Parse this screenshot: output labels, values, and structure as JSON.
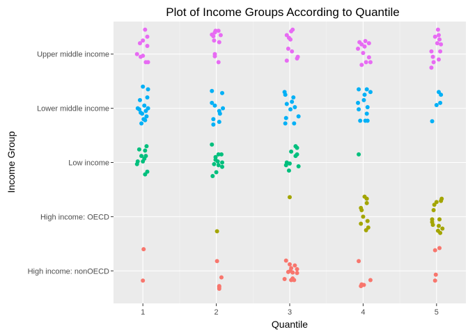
{
  "chart_data": {
    "type": "scatter",
    "title": "Plot of Income Groups According to Quantile",
    "xlabel": "Quantile",
    "ylabel": "Income Group",
    "x_ticks": [
      "1",
      "2",
      "3",
      "4",
      "5"
    ],
    "y_categories": [
      "High income: nonOECD",
      "High income: OECD",
      "Low income",
      "Lower middle income",
      "Upper middle income"
    ],
    "xlim": [
      0.6,
      5.4
    ],
    "ylim": [
      0.4,
      5.6
    ],
    "grid": true,
    "legend": "none",
    "series": [
      {
        "color": "#F8766D",
        "points": [
          {
            "x": 1.01,
            "y": 1.4
          },
          {
            "x": 1.0,
            "y": 0.82
          },
          {
            "x": 2.01,
            "y": 1.18
          },
          {
            "x": 2.07,
            "y": 0.88
          },
          {
            "x": 2.04,
            "y": 0.72
          },
          {
            "x": 2.04,
            "y": 0.67
          },
          {
            "x": 2.04,
            "y": 0.7
          },
          {
            "x": 2.95,
            "y": 1.19
          },
          {
            "x": 3.0,
            "y": 1.12
          },
          {
            "x": 3.07,
            "y": 1.1
          },
          {
            "x": 3.02,
            "y": 1.05
          },
          {
            "x": 3.1,
            "y": 1.03
          },
          {
            "x": 3.01,
            "y": 1.0
          },
          {
            "x": 2.98,
            "y": 0.98
          },
          {
            "x": 3.04,
            "y": 0.97
          },
          {
            "x": 3.1,
            "y": 0.96
          },
          {
            "x": 2.93,
            "y": 0.85
          },
          {
            "x": 3.02,
            "y": 0.83
          },
          {
            "x": 3.04,
            "y": 0.86
          },
          {
            "x": 3.06,
            "y": 0.83
          },
          {
            "x": 3.94,
            "y": 1.18
          },
          {
            "x": 4.1,
            "y": 0.83
          },
          {
            "x": 3.98,
            "y": 0.75
          },
          {
            "x": 3.97,
            "y": 0.72
          },
          {
            "x": 4.01,
            "y": 0.74
          },
          {
            "x": 5.04,
            "y": 1.42
          },
          {
            "x": 4.98,
            "y": 1.38
          },
          {
            "x": 4.99,
            "y": 0.93
          },
          {
            "x": 4.98,
            "y": 0.82
          }
        ]
      },
      {
        "color": "#A3A500",
        "points": [
          {
            "x": 2.01,
            "y": 1.73
          },
          {
            "x": 3.0,
            "y": 2.36
          },
          {
            "x": 4.02,
            "y": 2.37
          },
          {
            "x": 4.05,
            "y": 2.33
          },
          {
            "x": 4.05,
            "y": 2.25
          },
          {
            "x": 3.97,
            "y": 2.16
          },
          {
            "x": 3.98,
            "y": 2.12
          },
          {
            "x": 4.0,
            "y": 2.0
          },
          {
            "x": 4.06,
            "y": 1.92
          },
          {
            "x": 3.97,
            "y": 1.87
          },
          {
            "x": 4.07,
            "y": 1.8
          },
          {
            "x": 4.04,
            "y": 1.75
          },
          {
            "x": 5.07,
            "y": 2.33
          },
          {
            "x": 5.06,
            "y": 2.29
          },
          {
            "x": 5.0,
            "y": 2.27
          },
          {
            "x": 4.97,
            "y": 2.22
          },
          {
            "x": 4.96,
            "y": 2.12
          },
          {
            "x": 4.94,
            "y": 1.95
          },
          {
            "x": 5.04,
            "y": 1.95
          },
          {
            "x": 4.94,
            "y": 1.9
          },
          {
            "x": 4.95,
            "y": 1.85
          },
          {
            "x": 5.03,
            "y": 1.83
          },
          {
            "x": 5.08,
            "y": 1.78
          },
          {
            "x": 5.02,
            "y": 1.74
          },
          {
            "x": 5.05,
            "y": 1.7
          }
        ]
      },
      {
        "color": "#00BF7D",
        "points": [
          {
            "x": 1.05,
            "y": 3.3
          },
          {
            "x": 0.95,
            "y": 3.24
          },
          {
            "x": 1.03,
            "y": 3.22
          },
          {
            "x": 0.98,
            "y": 3.12
          },
          {
            "x": 1.04,
            "y": 3.12
          },
          {
            "x": 1.02,
            "y": 3.07
          },
          {
            "x": 0.93,
            "y": 3.02
          },
          {
            "x": 1.0,
            "y": 3.02
          },
          {
            "x": 0.92,
            "y": 2.97
          },
          {
            "x": 1.06,
            "y": 2.83
          },
          {
            "x": 1.03,
            "y": 2.78
          },
          {
            "x": 1.94,
            "y": 3.33
          },
          {
            "x": 2.03,
            "y": 3.15
          },
          {
            "x": 2.07,
            "y": 3.15
          },
          {
            "x": 1.99,
            "y": 3.1
          },
          {
            "x": 1.99,
            "y": 3.05
          },
          {
            "x": 2.02,
            "y": 3.02
          },
          {
            "x": 2.08,
            "y": 3.0
          },
          {
            "x": 1.97,
            "y": 2.97
          },
          {
            "x": 2.03,
            "y": 2.95
          },
          {
            "x": 2.08,
            "y": 2.92
          },
          {
            "x": 2.0,
            "y": 2.82
          },
          {
            "x": 1.95,
            "y": 2.75
          },
          {
            "x": 3.08,
            "y": 3.3
          },
          {
            "x": 3.1,
            "y": 3.27
          },
          {
            "x": 3.02,
            "y": 3.2
          },
          {
            "x": 3.1,
            "y": 3.15
          },
          {
            "x": 3.08,
            "y": 3.12
          },
          {
            "x": 2.96,
            "y": 3.0
          },
          {
            "x": 3.0,
            "y": 2.98
          },
          {
            "x": 2.95,
            "y": 2.95
          },
          {
            "x": 3.12,
            "y": 2.93
          },
          {
            "x": 2.99,
            "y": 2.85
          },
          {
            "x": 3.94,
            "y": 3.15
          }
        ]
      },
      {
        "color": "#00B0F6",
        "points": [
          {
            "x": 1.0,
            "y": 4.4
          },
          {
            "x": 1.07,
            "y": 4.35
          },
          {
            "x": 1.06,
            "y": 4.2
          },
          {
            "x": 0.96,
            "y": 4.15
          },
          {
            "x": 1.02,
            "y": 4.05
          },
          {
            "x": 0.93,
            "y": 4.0
          },
          {
            "x": 0.95,
            "y": 3.98
          },
          {
            "x": 1.07,
            "y": 4.0
          },
          {
            "x": 1.04,
            "y": 3.95
          },
          {
            "x": 0.97,
            "y": 3.92
          },
          {
            "x": 0.99,
            "y": 3.9
          },
          {
            "x": 1.05,
            "y": 3.85
          },
          {
            "x": 1.01,
            "y": 3.8
          },
          {
            "x": 1.03,
            "y": 3.78
          },
          {
            "x": 0.98,
            "y": 3.72
          },
          {
            "x": 1.94,
            "y": 4.32
          },
          {
            "x": 2.08,
            "y": 4.28
          },
          {
            "x": 1.94,
            "y": 4.1
          },
          {
            "x": 1.98,
            "y": 4.05
          },
          {
            "x": 2.09,
            "y": 4.0
          },
          {
            "x": 2.04,
            "y": 3.95
          },
          {
            "x": 2.05,
            "y": 3.9
          },
          {
            "x": 1.96,
            "y": 3.8
          },
          {
            "x": 2.04,
            "y": 3.75
          },
          {
            "x": 1.96,
            "y": 3.7
          },
          {
            "x": 2.93,
            "y": 4.3
          },
          {
            "x": 2.94,
            "y": 4.25
          },
          {
            "x": 3.05,
            "y": 4.2
          },
          {
            "x": 3.03,
            "y": 4.12
          },
          {
            "x": 2.96,
            "y": 4.08
          },
          {
            "x": 3.07,
            "y": 4.02
          },
          {
            "x": 3.01,
            "y": 3.98
          },
          {
            "x": 3.12,
            "y": 3.85
          },
          {
            "x": 2.95,
            "y": 3.82
          },
          {
            "x": 2.94,
            "y": 3.72
          },
          {
            "x": 3.06,
            "y": 3.72
          },
          {
            "x": 3.94,
            "y": 4.35
          },
          {
            "x": 4.05,
            "y": 4.35
          },
          {
            "x": 4.1,
            "y": 4.3
          },
          {
            "x": 4.02,
            "y": 4.25
          },
          {
            "x": 4.01,
            "y": 4.15
          },
          {
            "x": 3.93,
            "y": 4.1
          },
          {
            "x": 4.06,
            "y": 4.02
          },
          {
            "x": 3.94,
            "y": 3.98
          },
          {
            "x": 4.05,
            "y": 3.9
          },
          {
            "x": 3.96,
            "y": 3.77
          },
          {
            "x": 4.03,
            "y": 3.77
          },
          {
            "x": 4.06,
            "y": 3.77
          },
          {
            "x": 5.03,
            "y": 4.3
          },
          {
            "x": 5.06,
            "y": 4.25
          },
          {
            "x": 5.05,
            "y": 4.1
          },
          {
            "x": 5.0,
            "y": 4.06
          },
          {
            "x": 4.94,
            "y": 3.76
          }
        ]
      },
      {
        "color": "#E76BF3",
        "points": [
          {
            "x": 1.03,
            "y": 5.45
          },
          {
            "x": 1.06,
            "y": 5.32
          },
          {
            "x": 1.0,
            "y": 5.25
          },
          {
            "x": 0.96,
            "y": 5.2
          },
          {
            "x": 1.06,
            "y": 5.15
          },
          {
            "x": 0.92,
            "y": 5.0
          },
          {
            "x": 1.0,
            "y": 4.97
          },
          {
            "x": 0.97,
            "y": 4.95
          },
          {
            "x": 1.04,
            "y": 4.85
          },
          {
            "x": 1.07,
            "y": 4.85
          },
          {
            "x": 1.99,
            "y": 5.43
          },
          {
            "x": 2.03,
            "y": 5.43
          },
          {
            "x": 1.98,
            "y": 5.4
          },
          {
            "x": 2.06,
            "y": 5.35
          },
          {
            "x": 1.94,
            "y": 5.36
          },
          {
            "x": 1.96,
            "y": 5.33
          },
          {
            "x": 1.97,
            "y": 5.25
          },
          {
            "x": 2.04,
            "y": 5.22
          },
          {
            "x": 1.98,
            "y": 5.0
          },
          {
            "x": 1.98,
            "y": 4.96
          },
          {
            "x": 2.03,
            "y": 4.85
          },
          {
            "x": 3.04,
            "y": 5.45
          },
          {
            "x": 3.02,
            "y": 5.42
          },
          {
            "x": 2.96,
            "y": 5.35
          },
          {
            "x": 2.99,
            "y": 5.3
          },
          {
            "x": 3.01,
            "y": 5.27
          },
          {
            "x": 2.98,
            "y": 5.1
          },
          {
            "x": 3.03,
            "y": 5.05
          },
          {
            "x": 3.11,
            "y": 4.95
          },
          {
            "x": 3.1,
            "y": 4.92
          },
          {
            "x": 2.96,
            "y": 4.88
          },
          {
            "x": 3.95,
            "y": 5.22
          },
          {
            "x": 4.03,
            "y": 5.24
          },
          {
            "x": 4.08,
            "y": 5.2
          },
          {
            "x": 3.98,
            "y": 5.18
          },
          {
            "x": 4.02,
            "y": 5.14
          },
          {
            "x": 3.93,
            "y": 5.1
          },
          {
            "x": 4.0,
            "y": 5.02
          },
          {
            "x": 4.08,
            "y": 4.94
          },
          {
            "x": 4.04,
            "y": 4.85
          },
          {
            "x": 4.1,
            "y": 4.85
          },
          {
            "x": 3.98,
            "y": 4.8
          },
          {
            "x": 5.02,
            "y": 5.45
          },
          {
            "x": 5.03,
            "y": 5.35
          },
          {
            "x": 4.98,
            "y": 5.32
          },
          {
            "x": 5.04,
            "y": 5.27
          },
          {
            "x": 5.01,
            "y": 5.2
          },
          {
            "x": 5.06,
            "y": 5.18
          },
          {
            "x": 4.93,
            "y": 5.05
          },
          {
            "x": 5.05,
            "y": 5.05
          },
          {
            "x": 4.95,
            "y": 4.95
          },
          {
            "x": 5.03,
            "y": 4.9
          },
          {
            "x": 4.96,
            "y": 4.85
          },
          {
            "x": 4.93,
            "y": 4.75
          }
        ]
      }
    ]
  },
  "colors": {
    "panel_background": "#EBEBEB",
    "grid_major": "#FFFFFF",
    "grid_minor": "#F5F5F5"
  }
}
